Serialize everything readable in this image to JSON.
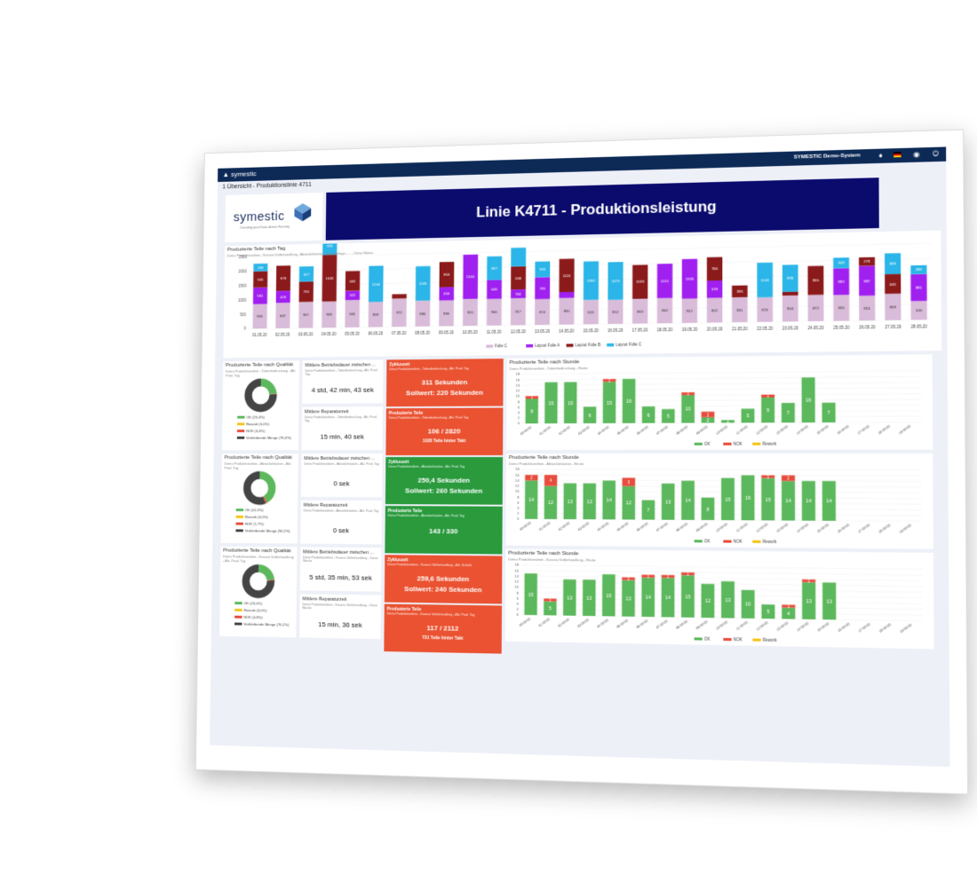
{
  "app": {
    "logo": "symestic",
    "system_name": "SYMESTIC Demo-System",
    "breadcrumb": "1 Übersicht - Produktionslinie 4711"
  },
  "brand": {
    "name": "symestic",
    "tagline": "Creating your Data-driven Factory"
  },
  "page_title": "Linie K4711 - Produktionsleistung",
  "colors": {
    "header": "#0d2a57",
    "title_bg": "#0b0b6e",
    "red_kpi": "#ea5231",
    "green_kpi": "#2a9a3d",
    "ok": "#5cb85c",
    "nok": "#e74c3c",
    "rework": "#f5c518",
    "folie_c": "#d9bcd9",
    "layout_a": "#a020f0",
    "layout_b": "#8b1a1a",
    "layout_c": "#2bb5e8"
  },
  "icons": [
    "logo-icon",
    "bell-icon",
    "flag-de-icon",
    "globe-icon",
    "power-icon"
  ],
  "daily_chart": {
    "title": "Produzierte Teile nach Tag",
    "subtitle": "Demo Produktionslinie - Kosova Vorbehandlung - Abwickelstation - Seitenbelage - ... - Diese Monat",
    "legend": [
      "Folie C",
      "Layout Folie A",
      "Layout Folie B",
      "Layout Folie C"
    ]
  },
  "chart_data": [
    {
      "type": "bar",
      "title": "Produzierte Teile nach Tag",
      "ylim": [
        0,
        2500
      ],
      "yticks": [
        0,
        500,
        1000,
        1500,
        2000,
        2500
      ],
      "categories": [
        "01.05.20",
        "02.05.20",
        "03.05.20",
        "04.05.20",
        "05.05.20",
        "06.05.20",
        "07.05.20",
        "08.05.20",
        "09.05.20",
        "10.05.20",
        "11.05.20",
        "12.05.20",
        "13.05.20",
        "14.05.20",
        "15.05.20",
        "16.05.20",
        "17.05.20",
        "18.05.20",
        "19.05.20",
        "20.05.20",
        "21.05.20",
        "22.05.20",
        "23.05.20",
        "24.05.20",
        "25.05.20",
        "26.05.20",
        "27.05.20",
        "28.05.20"
      ],
      "series": [
        {
          "name": "Folie C",
          "values": [
            855,
            887,
            907,
            908,
            945,
            868,
            972,
            886,
            880,
            920,
            906,
            917,
            874,
            900,
            822,
            812,
            833,
            842,
            812,
            822,
            831,
            815,
            864,
            872,
            855,
            816,
            869,
            616
          ]
        },
        {
          "name": "Layout Folie A",
          "values": [
            581,
            418,
            0,
            0,
            322,
            0,
            0,
            0,
            456,
            1516,
            646,
            300,
            745,
            201,
            0,
            0,
            0,
            1151,
            1326,
            578,
            0,
            0,
            0,
            0,
            882,
            987,
            0,
            881
          ]
        },
        {
          "name": "Layout Folie B",
          "values": [
            565,
            878,
            706,
            1618,
            682,
            0,
            150,
            0,
            864,
            0,
            0,
            782,
            0,
            1124,
            0,
            0,
            1139,
            0,
            0,
            784,
            393,
            0,
            122,
            955,
            0,
            278,
            645,
            0
          ]
        },
        {
          "name": "Layout Folie C",
          "values": [
            269,
            0,
            527,
            634,
            0,
            1244,
            0,
            1183,
            0,
            0,
            807,
            638,
            533,
            0,
            1302,
            1273,
            0,
            0,
            0,
            0,
            0,
            1153,
            895,
            0,
            349,
            0,
            683,
            289
          ]
        }
      ],
      "data_labels": [
        [
          "855",
          "581",
          "565",
          "269"
        ],
        [
          "887",
          "418",
          "878"
        ],
        [
          "907",
          "706",
          "527"
        ],
        [
          "908",
          "1618",
          "634"
        ],
        [
          "945",
          "322",
          "682"
        ],
        [
          "868",
          "1244"
        ],
        [
          "972",
          "150"
        ],
        [
          "886",
          "1183"
        ],
        [
          "880",
          "456",
          "864"
        ],
        [
          "920",
          "1516"
        ],
        [
          "906",
          "646",
          "807"
        ],
        [
          "917",
          "782",
          "638"
        ],
        [
          "874",
          "745",
          "533"
        ],
        [
          "900",
          "201",
          "1124"
        ],
        [
          "822",
          "1302"
        ],
        [
          "812",
          "1273"
        ],
        [
          "833",
          "1139"
        ],
        [
          "842",
          "1151"
        ],
        [
          "812",
          "1326"
        ],
        [
          "822",
          "578",
          "784"
        ],
        [
          "831",
          "393"
        ],
        [
          "815",
          "1153"
        ],
        [
          "864",
          "122",
          "895"
        ],
        [
          "872",
          "955"
        ],
        [
          "855",
          "882",
          "349"
        ],
        [
          "816",
          "987",
          "278"
        ],
        [
          "869",
          "645",
          "683"
        ],
        [
          "616",
          "881",
          "289"
        ]
      ]
    },
    {
      "type": "bar",
      "title": "Produzierte Teile nach Stunde",
      "subtitle": "Demo Produktionslinie - Tobenbedruckung - Heute",
      "categories": [
        "00:00:00",
        "01:00:00",
        "02:00:00",
        "03:00:00",
        "04:00:00",
        "05:00:00",
        "06:00:00",
        "07:00:00",
        "08:00:00",
        "09:00:00",
        "10:00:00",
        "11:00:00",
        "12:00:00",
        "13:00:00",
        "14:00:00",
        "15:00:00",
        "16:00:00",
        "17:00:00",
        "18:00:00",
        "19:00:00"
      ],
      "series": [
        {
          "name": "OK",
          "values": [
            9,
            15,
            15,
            6,
            15,
            16,
            6,
            5,
            10,
            2,
            1,
            5,
            9,
            7,
            16,
            7,
            0,
            0,
            0,
            0
          ]
        },
        {
          "name": "NOK",
          "values": [
            1,
            0,
            0,
            0,
            1,
            0,
            0,
            0,
            1,
            2,
            0,
            0,
            1,
            0,
            0,
            0,
            0,
            0,
            0,
            0
          ]
        },
        {
          "name": "Rework",
          "values": [
            0,
            0,
            0,
            0,
            0,
            0,
            0,
            0,
            0,
            0,
            0,
            0,
            0,
            0,
            0,
            0,
            0,
            0,
            0,
            0
          ]
        }
      ],
      "bar_labels": [
        [
          "9",
          "1"
        ],
        [
          "15"
        ],
        [
          "15"
        ],
        [
          "6"
        ],
        [
          "15",
          "1"
        ],
        [
          "16"
        ],
        [
          "6"
        ],
        [
          "5"
        ],
        [
          "10",
          "1"
        ],
        [
          "2",
          "2"
        ],
        [
          "1"
        ],
        [
          "5"
        ],
        [
          "9",
          "1"
        ],
        [
          "7"
        ],
        [
          "16"
        ],
        [
          "7"
        ]
      ],
      "legend": [
        "OK",
        "NOK",
        "Rework"
      ]
    },
    {
      "type": "bar",
      "title": "Produzierte Teile nach Stunde",
      "subtitle": "Demo Produktionslinie - Abwickelstation - Heute",
      "categories": [
        "00:00:00",
        "01:00:00",
        "02:00:00",
        "03:00:00",
        "04:00:00",
        "05:00:00",
        "06:00:00",
        "07:00:00",
        "08:00:00",
        "09:00:00",
        "10:00:00",
        "11:00:00",
        "12:00:00",
        "13:00:00",
        "14:00:00",
        "15:00:00",
        "16:00:00",
        "17:00:00",
        "18:00:00",
        "19:00:00"
      ],
      "series": [
        {
          "name": "OK",
          "values": [
            14,
            12,
            13,
            13,
            14,
            12,
            7,
            13,
            14,
            8,
            15,
            16,
            15,
            14,
            14,
            14,
            0,
            0,
            0,
            0
          ]
        },
        {
          "name": "NOK",
          "values": [
            2,
            4,
            0,
            0,
            0,
            3,
            0,
            0,
            0,
            0,
            0,
            0,
            1,
            2,
            0,
            0,
            0,
            0,
            0,
            0
          ]
        },
        {
          "name": "Rework",
          "values": [
            0,
            0,
            0,
            0,
            0,
            0,
            0,
            0,
            0,
            0,
            0,
            0,
            0,
            0,
            0,
            0,
            0,
            0,
            0,
            0
          ]
        }
      ],
      "bar_labels": [
        [
          "14",
          "2"
        ],
        [
          "12",
          "4"
        ],
        [
          "13"
        ],
        [
          "13"
        ],
        [
          "14"
        ],
        [
          "12",
          "3"
        ],
        [
          "7"
        ],
        [
          "13"
        ],
        [
          "14"
        ],
        [
          "8"
        ],
        [
          "15"
        ],
        [
          "16",
          "1"
        ],
        [
          "15",
          "1"
        ],
        [
          "14",
          "2"
        ],
        [
          "14"
        ],
        [
          "14"
        ]
      ],
      "legend": [
        "OK",
        "NOK",
        "Rework"
      ]
    },
    {
      "type": "bar",
      "title": "Produzierte Teile nach Stunde",
      "subtitle": "Demo Produktionslinie - Kosova Vorbehandlung - Heute",
      "categories": [
        "00:00:00",
        "01:00:00",
        "02:00:00",
        "03:00:00",
        "04:00:00",
        "05:00:00",
        "06:00:00",
        "07:00:00",
        "08:00:00",
        "09:00:00",
        "10:00:00",
        "11:00:00",
        "12:00:00",
        "13:00:00",
        "14:00:00",
        "15:00:00",
        "16:00:00",
        "17:00:00",
        "18:00:00",
        "19:00:00"
      ],
      "series": [
        {
          "name": "OK",
          "values": [
            15,
            5,
            13,
            13,
            15,
            13,
            14,
            14,
            15,
            12,
            13,
            10,
            5,
            4,
            13,
            13,
            0,
            0,
            0,
            0
          ]
        },
        {
          "name": "NOK",
          "values": [
            0,
            1,
            0,
            0,
            0,
            1,
            1,
            1,
            1,
            0,
            0,
            0,
            0,
            1,
            1,
            0,
            0,
            0,
            0,
            0
          ]
        },
        {
          "name": "Rework",
          "values": [
            0,
            0,
            0,
            0,
            0,
            0,
            0,
            0,
            0,
            0,
            0,
            0,
            0,
            0,
            0,
            0,
            0,
            0,
            0,
            0
          ]
        }
      ],
      "bar_labels": [
        [
          "15"
        ],
        [
          "5",
          "1"
        ],
        [
          "13"
        ],
        [
          "13"
        ],
        [
          "15"
        ],
        [
          "13",
          "1"
        ],
        [
          "14",
          "1"
        ],
        [
          "14",
          "1"
        ],
        [
          "15",
          "1"
        ],
        [
          "12"
        ],
        [
          "13"
        ],
        [
          "10"
        ],
        [
          "5"
        ],
        [
          "4",
          "1"
        ],
        [
          "13",
          "1"
        ],
        [
          "13"
        ]
      ],
      "legend": [
        "OK",
        "NOK",
        "Rework"
      ]
    },
    {
      "type": "pie",
      "title": "Produzierte Teile nach Qualität",
      "subtitle": "Demo Produktionslinie - Tobenbedruckung - Akt. Prod. Tag",
      "slices": [
        {
          "name": "OK",
          "value": 23.4
        },
        {
          "name": "Rework",
          "value": 0.0
        },
        {
          "name": "NOK",
          "value": 0.4
        },
        {
          "name": "Verbleibende Menge",
          "value": 76.0
        }
      ],
      "legend": [
        "OK (23,4%)",
        "Rework (0,0%)",
        "NOK (0,4%)",
        "Verbleibende Menge (76,0%)"
      ]
    },
    {
      "type": "pie",
      "title": "Produzierte Teile nach Qualität",
      "subtitle": "Demo Produktionslinie - Abwickelstation - Akt. Prod. Tag",
      "slices": [
        {
          "name": "OK",
          "value": 41.5
        },
        {
          "name": "Rework",
          "value": 0.0
        },
        {
          "name": "NOK",
          "value": 1.7
        },
        {
          "name": "Verbleibende Menge",
          "value": 56.2
        }
      ],
      "legend": [
        "OK (41,5%)",
        "Rework (0,0%)",
        "NOK (1,7%)",
        "Verbleibende Menge (56,2%)"
      ]
    },
    {
      "type": "pie",
      "title": "Produzierte Teile nach Qualität",
      "subtitle": "Demo Produktionslinie - Kosova Vorbehandlung - Akt. Prod. Tag",
      "slices": [
        {
          "name": "OK",
          "value": 23.0
        },
        {
          "name": "Rework",
          "value": 0.0
        },
        {
          "name": "NOK",
          "value": 0.8
        },
        {
          "name": "Verbleibende Menge",
          "value": 76.2
        }
      ],
      "legend": [
        "OK (23,0%)",
        "Rework (0,0%)",
        "NOK (0,8%)",
        "Verbleibende Menge (76,2%)"
      ]
    }
  ],
  "mid_cards": [
    {
      "title": "Mittlere Betriebsdauer zwischen ...",
      "subtitle": "Demo Produktionslinie - Tobenbedruckung - Akt. Prod. Tag",
      "value": "4 std, 42 min, 43 sek"
    },
    {
      "title": "Mittlere Reparaturzeit",
      "subtitle": "Demo Produktionslinie - Tobenbedruckung - Akt. Prod. Tag",
      "value": "15 min, 40 sek"
    },
    {
      "title": "Mittlere Betriebsdauer zwischen ...",
      "subtitle": "Demo Produktionslinie - Abwickelstation - Akt. Prod. Tag",
      "value": "0 sek"
    },
    {
      "title": "Mittlere Reparaturzeit",
      "subtitle": "Demo Produktionslinie - Abwickelstation - Akt. Prod. Tag",
      "value": "0 sek"
    },
    {
      "title": "Mittlere Betriebsdauer zwischen ...",
      "subtitle": "Demo Produktionslinie - Kosova Vorbehandlung - Diese Woche",
      "value": "5 std, 35 min, 53 sek"
    },
    {
      "title": "Mittlere Reparaturzeit",
      "subtitle": "Demo Produktionslinie - Kosova Vorbehandlung - Diese Woche",
      "value": "15 min, 36 sek"
    }
  ],
  "kpi_cards": [
    {
      "title": "Zykluszeit",
      "subtitle": "Demo Produktionslinie - Tobenbedruckung - Akt. Prod. Tag",
      "line1": "311 Sekunden",
      "line2": "Sollwert: 220 Sekunden",
      "line3": "",
      "status": "red"
    },
    {
      "title": "Produzierte Teile",
      "subtitle": "Demo Produktionslinie - Tobenbedruckung - Akt. Prod. Tag",
      "line1": "106 / 2820",
      "line2": "",
      "line3": "1028 Teile hinter Takt",
      "status": "red"
    },
    {
      "title": "Zykluszeit",
      "subtitle": "Demo Produktionslinie - Abwickelstation - Akt. Prod. Tag",
      "line1": "250,4 Sekunden",
      "line2": "Sollwert: 260 Sekunden",
      "line3": "",
      "status": "green"
    },
    {
      "title": "Produzierte Teile",
      "subtitle": "Demo Produktionslinie - Abwickelstation - Akt. Prod. Tag",
      "line1": "143 / 330",
      "line2": "",
      "line3": "",
      "status": "green"
    },
    {
      "title": "Zykluszeit",
      "subtitle": "Demo Produktionslinie - Kosova Vorbehandlung - Akt. Schicht",
      "line1": "259,6 Sekunden",
      "line2": "Sollwert: 240 Sekunden",
      "line3": "",
      "status": "red"
    },
    {
      "title": "Produzierte Teile",
      "subtitle": "Demo Produktionslinie - Kosova Vorbehandlung - Akt. Prod. Tag",
      "line1": "117 / 2112",
      "line2": "",
      "line3": "731 Teile hinter Takt",
      "status": "red"
    }
  ]
}
